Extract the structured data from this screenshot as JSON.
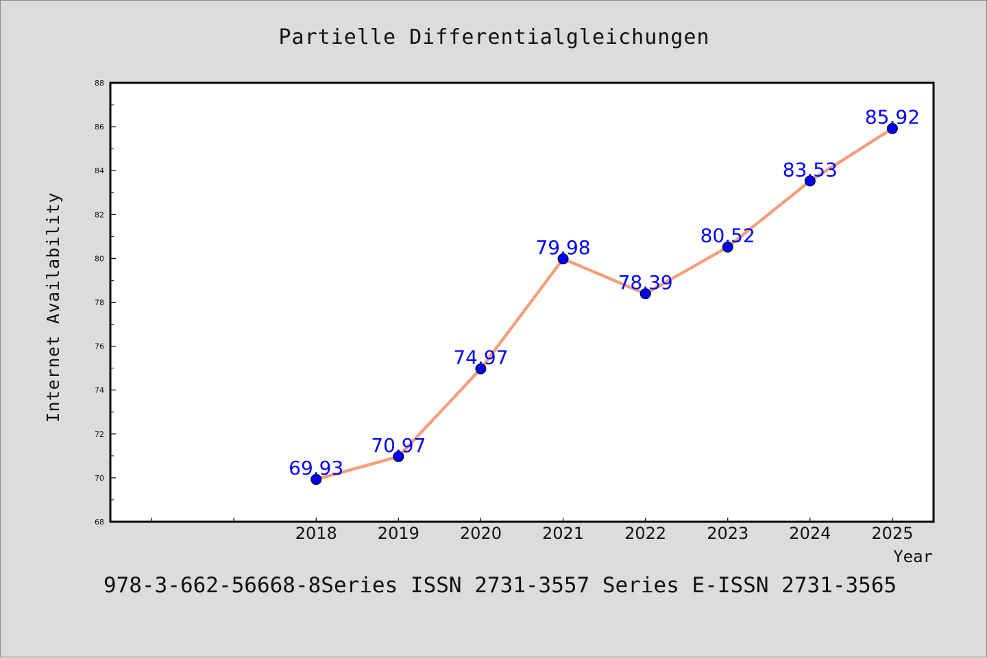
{
  "title": "Partielle Differentialgleichungen",
  "footer": "978-3-662-56668-8Series ISSN 2731-3557 Series E-ISSN 2731-3565",
  "colors": {
    "background": "#dcdcdc",
    "plot_background": "#ffffff",
    "line": "#f4a07c",
    "marker": "#0000ee",
    "data_label": "#0000ff",
    "text": "#111111"
  },
  "chart_data": {
    "type": "line",
    "title": "Partielle Differentialgleichungen",
    "xlabel": "Year",
    "ylabel": "Internet Availability",
    "x": [
      "2018",
      "2019",
      "2020",
      "2021",
      "2022",
      "2023",
      "2024",
      "2025"
    ],
    "series": [
      {
        "values": [
          69.93,
          70.97,
          74.97,
          79.98,
          78.39,
          80.52,
          83.53,
          85.92
        ],
        "labels": [
          "69.93",
          "70.97",
          "74.97",
          "79.98",
          "78.39",
          "80.52",
          "83.53",
          "85.92"
        ]
      }
    ],
    "xlim": [
      2015.5,
      2025.5
    ],
    "ylim": [
      68,
      88
    ],
    "yticks": [
      68,
      70,
      72,
      74,
      76,
      78,
      80,
      82,
      84,
      86,
      88
    ],
    "grid": false,
    "legend": "none"
  }
}
